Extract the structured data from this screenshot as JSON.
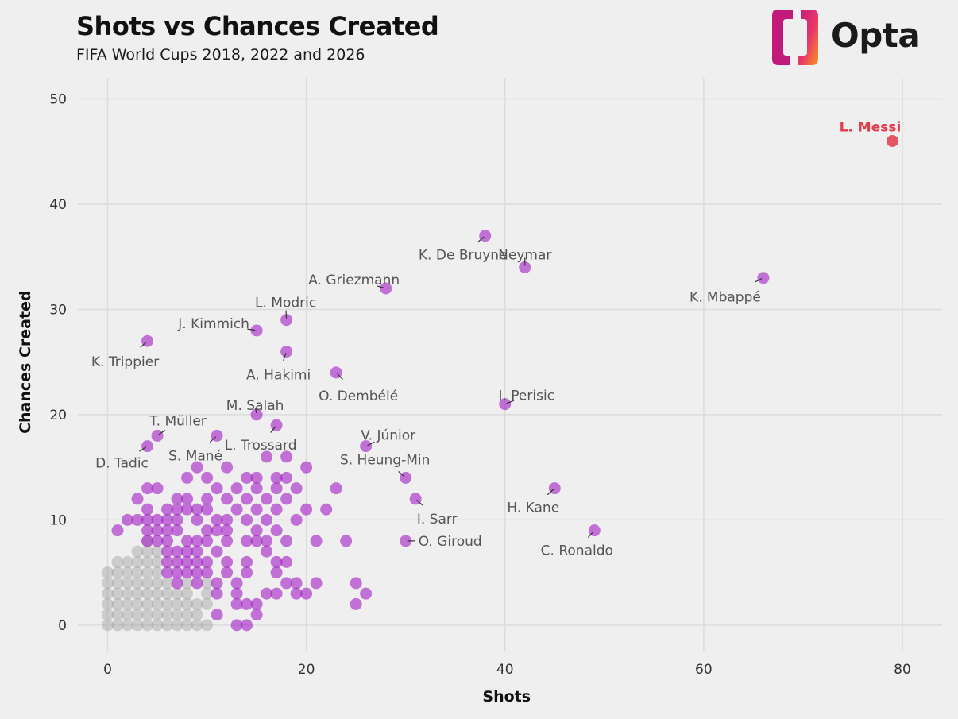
{
  "chart_data": {
    "type": "scatter",
    "title": "Shots vs Chances Created",
    "subtitle": "FIFA World Cups 2018, 2022 and 2026",
    "xlabel": "Shots",
    "ylabel": "Chances Created",
    "xlim": [
      -3,
      84
    ],
    "ylim": [
      -2.5,
      52
    ],
    "xticks": [
      0,
      20,
      40,
      60,
      80
    ],
    "yticks": [
      0,
      10,
      20,
      30,
      40,
      50
    ],
    "grid": true,
    "colors": {
      "highlight": "#e23b4a",
      "player": "#a21cc4",
      "grey": "#9a9a9a"
    },
    "highlight": {
      "name": "L. Messi",
      "x": 79,
      "y": 46
    },
    "labeled": [
      {
        "name": "K. De Bruyne",
        "x": 38,
        "y": 37
      },
      {
        "name": "Neymar",
        "x": 42,
        "y": 34
      },
      {
        "name": "K. Mbappé",
        "x": 66,
        "y": 33
      },
      {
        "name": "A. Griezmann",
        "x": 28,
        "y": 32
      },
      {
        "name": "L. Modric",
        "x": 18,
        "y": 29
      },
      {
        "name": "J. Kimmich",
        "x": 15,
        "y": 28
      },
      {
        "name": "K. Trippier",
        "x": 4,
        "y": 27
      },
      {
        "name": "A. Hakimi",
        "x": 18,
        "y": 26
      },
      {
        "name": "O. Dembélé",
        "x": 23,
        "y": 24
      },
      {
        "name": "I. Perisic",
        "x": 40,
        "y": 21
      },
      {
        "name": "M. Salah",
        "x": 15,
        "y": 20
      },
      {
        "name": "L. Trossard",
        "x": 17,
        "y": 19
      },
      {
        "name": "T. Müller",
        "x": 5,
        "y": 18
      },
      {
        "name": "S. Mané",
        "x": 11,
        "y": 18
      },
      {
        "name": "D. Tadic",
        "x": 4,
        "y": 17
      },
      {
        "name": "V. Júnior",
        "x": 26,
        "y": 17
      },
      {
        "name": "S. Heung-Min",
        "x": 30,
        "y": 14
      },
      {
        "name": "H. Kane",
        "x": 45,
        "y": 13
      },
      {
        "name": "I. Sarr",
        "x": 31,
        "y": 12
      },
      {
        "name": "C. Ronaldo",
        "x": 49,
        "y": 9
      },
      {
        "name": "O. Giroud",
        "x": 30,
        "y": 8
      }
    ],
    "others": [
      [
        16,
        16
      ],
      [
        18,
        16
      ],
      [
        14,
        14
      ],
      [
        15,
        14
      ],
      [
        17,
        14
      ],
      [
        18,
        14
      ],
      [
        20,
        15
      ],
      [
        4,
        13
      ],
      [
        5,
        13
      ],
      [
        8,
        14
      ],
      [
        9,
        15
      ],
      [
        10,
        14
      ],
      [
        11,
        13
      ],
      [
        12,
        15
      ],
      [
        13,
        13
      ],
      [
        15,
        13
      ],
      [
        17,
        13
      ],
      [
        19,
        13
      ],
      [
        23,
        13
      ],
      [
        3,
        12
      ],
      [
        7,
        12
      ],
      [
        8,
        12
      ],
      [
        10,
        12
      ],
      [
        12,
        12
      ],
      [
        14,
        12
      ],
      [
        16,
        12
      ],
      [
        18,
        12
      ],
      [
        22,
        11
      ],
      [
        4,
        11
      ],
      [
        6,
        11
      ],
      [
        7,
        11
      ],
      [
        8,
        11
      ],
      [
        9,
        11
      ],
      [
        10,
        11
      ],
      [
        13,
        11
      ],
      [
        15,
        11
      ],
      [
        17,
        11
      ],
      [
        20,
        11
      ],
      [
        2,
        10
      ],
      [
        3,
        10
      ],
      [
        4,
        10
      ],
      [
        5,
        10
      ],
      [
        6,
        10
      ],
      [
        7,
        10
      ],
      [
        9,
        10
      ],
      [
        11,
        10
      ],
      [
        12,
        10
      ],
      [
        14,
        10
      ],
      [
        16,
        10
      ],
      [
        19,
        10
      ],
      [
        1,
        9
      ],
      [
        4,
        9
      ],
      [
        5,
        9
      ],
      [
        6,
        9
      ],
      [
        7,
        9
      ],
      [
        10,
        9
      ],
      [
        11,
        9
      ],
      [
        12,
        9
      ],
      [
        15,
        9
      ],
      [
        17,
        9
      ],
      [
        4,
        8
      ],
      [
        5,
        8
      ],
      [
        6,
        8
      ],
      [
        8,
        8
      ],
      [
        9,
        8
      ],
      [
        10,
        8
      ],
      [
        12,
        8
      ],
      [
        14,
        8
      ],
      [
        15,
        8
      ],
      [
        16,
        8
      ],
      [
        18,
        8
      ],
      [
        21,
        8
      ],
      [
        24,
        8
      ],
      [
        6,
        7
      ],
      [
        7,
        7
      ],
      [
        8,
        7
      ],
      [
        9,
        7
      ],
      [
        11,
        7
      ],
      [
        16,
        7
      ],
      [
        6,
        6
      ],
      [
        7,
        6
      ],
      [
        8,
        6
      ],
      [
        9,
        6
      ],
      [
        10,
        6
      ],
      [
        12,
        6
      ],
      [
        14,
        6
      ],
      [
        17,
        6
      ],
      [
        18,
        6
      ],
      [
        6,
        5
      ],
      [
        7,
        5
      ],
      [
        8,
        5
      ],
      [
        9,
        5
      ],
      [
        10,
        5
      ],
      [
        12,
        5
      ],
      [
        14,
        5
      ],
      [
        17,
        5
      ],
      [
        7,
        4
      ],
      [
        9,
        4
      ],
      [
        11,
        4
      ],
      [
        13,
        4
      ],
      [
        18,
        4
      ],
      [
        19,
        4
      ],
      [
        21,
        4
      ],
      [
        25,
        4
      ],
      [
        11,
        3
      ],
      [
        13,
        3
      ],
      [
        16,
        3
      ],
      [
        17,
        3
      ],
      [
        19,
        3
      ],
      [
        20,
        3
      ],
      [
        26,
        3
      ],
      [
        13,
        2
      ],
      [
        14,
        2
      ],
      [
        15,
        2
      ],
      [
        25,
        2
      ],
      [
        11,
        1
      ],
      [
        15,
        1
      ],
      [
        13,
        0
      ],
      [
        14,
        0
      ]
    ],
    "grey_points": [
      [
        3,
        7
      ],
      [
        4,
        7
      ],
      [
        1,
        6
      ],
      [
        2,
        6
      ],
      [
        3,
        6
      ],
      [
        4,
        6
      ],
      [
        5,
        6
      ],
      [
        0,
        5
      ],
      [
        1,
        5
      ],
      [
        2,
        5
      ],
      [
        3,
        5
      ],
      [
        4,
        5
      ],
      [
        5,
        5
      ],
      [
        0,
        4
      ],
      [
        1,
        4
      ],
      [
        2,
        4
      ],
      [
        3,
        4
      ],
      [
        4,
        4
      ],
      [
        5,
        4
      ],
      [
        6,
        4
      ],
      [
        8,
        4
      ],
      [
        0,
        3
      ],
      [
        1,
        3
      ],
      [
        2,
        3
      ],
      [
        3,
        3
      ],
      [
        4,
        3
      ],
      [
        5,
        3
      ],
      [
        6,
        3
      ],
      [
        7,
        3
      ],
      [
        8,
        3
      ],
      [
        10,
        3
      ],
      [
        0,
        2
      ],
      [
        1,
        2
      ],
      [
        2,
        2
      ],
      [
        3,
        2
      ],
      [
        4,
        2
      ],
      [
        5,
        2
      ],
      [
        6,
        2
      ],
      [
        7,
        2
      ],
      [
        8,
        2
      ],
      [
        0,
        1
      ],
      [
        1,
        1
      ],
      [
        2,
        1
      ],
      [
        3,
        1
      ],
      [
        4,
        1
      ],
      [
        5,
        1
      ],
      [
        6,
        1
      ],
      [
        7,
        1
      ],
      [
        8,
        1
      ],
      [
        9,
        1
      ],
      [
        0,
        0
      ],
      [
        1,
        0
      ],
      [
        2,
        0
      ],
      [
        3,
        0
      ],
      [
        4,
        0
      ],
      [
        5,
        0
      ],
      [
        6,
        0
      ],
      [
        7,
        0
      ],
      [
        8,
        0
      ],
      [
        10,
        0
      ],
      [
        4,
        8
      ],
      [
        5,
        7
      ],
      [
        10,
        4
      ],
      [
        9,
        2
      ],
      [
        10,
        2
      ],
      [
        9,
        0
      ]
    ],
    "label_offsets": {
      "L. Messi": [
        -28,
        -12
      ],
      "K. De Bruyne": [
        -28,
        24
      ],
      "Neymar": [
        0,
        -16
      ],
      "K. Mbappé": [
        -48,
        24
      ],
      "A. Griezmann": [
        -40,
        -11
      ],
      "L. Modric": [
        -1,
        -22
      ],
      "J. Kimmich": [
        -54,
        -9
      ],
      "K. Trippier": [
        -28,
        26
      ],
      "A. Hakimi": [
        -10,
        29
      ],
      "O. Dembélé": [
        28,
        29
      ],
      "I. Perisic": [
        27,
        -11
      ],
      "M. Salah": [
        -2,
        -12
      ],
      "L. Trossard": [
        -20,
        25
      ],
      "T. Müller": [
        26,
        -19
      ],
      "S. Mané": [
        -27,
        25
      ],
      "D. Tadic": [
        -32,
        21
      ],
      "V. Júnior": [
        28,
        -14
      ],
      "S. Heung-Min": [
        -26,
        -23
      ],
      "H. Kane": [
        -27,
        24
      ],
      "I. Sarr": [
        27,
        25
      ],
      "C. Ronaldo": [
        -22,
        25
      ],
      "O. Giroud": [
        56,
        0
      ]
    }
  }
}
